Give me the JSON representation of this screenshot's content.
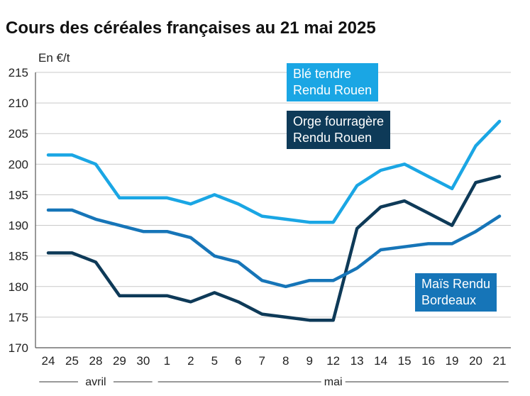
{
  "chart_data": {
    "type": "line",
    "title": "Cours des céréales françaises au 21 mai 2025",
    "ylabel": "En €/t",
    "ylim": [
      170,
      215
    ],
    "yticks": [
      170,
      175,
      180,
      185,
      190,
      195,
      200,
      205,
      210,
      215
    ],
    "categories": [
      "24",
      "25",
      "28",
      "29",
      "30",
      "1",
      "2",
      "5",
      "6",
      "7",
      "8",
      "9",
      "12",
      "13",
      "14",
      "15",
      "16",
      "19",
      "20",
      "21"
    ],
    "months": [
      {
        "label": "avril",
        "from": 0,
        "to": 4
      },
      {
        "label": "mai",
        "from": 5,
        "to": 19
      }
    ],
    "grid": true,
    "series": [
      {
        "name": "Blé tendre Rendu Rouen",
        "color": "#1aa6e4",
        "values": [
          201.5,
          201.5,
          200,
          194.5,
          194.5,
          194.5,
          193.5,
          195,
          193.5,
          191.5,
          191,
          190.5,
          190.5,
          196.5,
          199,
          200,
          198,
          196,
          203,
          207
        ]
      },
      {
        "name": "Orge fourragère Rendu Rouen",
        "color": "#0e3a58",
        "values": [
          185.5,
          185.5,
          184,
          178.5,
          178.5,
          178.5,
          177.5,
          179,
          177.5,
          175.5,
          175,
          174.5,
          174.5,
          189.5,
          193,
          194,
          192,
          190,
          197,
          198
        ]
      },
      {
        "name": "Maïs Rendu Bordeaux",
        "color": "#1675b8",
        "values": [
          192.5,
          192.5,
          191,
          190,
          189,
          189,
          188,
          185,
          184,
          181,
          180,
          181,
          181,
          183,
          186,
          186.5,
          187,
          187,
          189,
          191.5
        ]
      }
    ],
    "legend": [
      {
        "lines": [
          "Blé tendre",
          "Rendu Rouen"
        ],
        "color": "#1aa6e4"
      },
      {
        "lines": [
          "Orge fourragère",
          "Rendu Rouen"
        ],
        "color": "#0e3a58"
      },
      {
        "lines": [
          "Maïs Rendu",
          "Bordeaux"
        ],
        "color": "#1675b8"
      }
    ]
  }
}
